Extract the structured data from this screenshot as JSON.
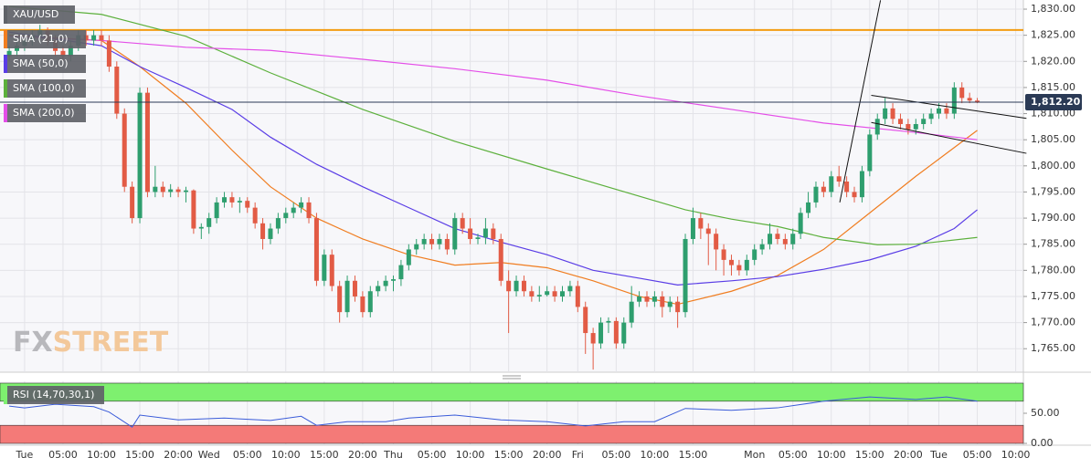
{
  "chart_data": {
    "type": "candlestick",
    "symbol": "XAU/USD",
    "up_color": "#2e9e6e",
    "down_color": "#e25b45",
    "xlim": [
      -3.2,
      130
    ],
    "ylim": [
      1760.5,
      1831.75
    ],
    "grid": true,
    "xticks": [
      {
        "value": 0,
        "label": "Tue"
      },
      {
        "value": 5,
        "label": "05:00"
      },
      {
        "value": 10,
        "label": "10:00"
      },
      {
        "value": 15,
        "label": "15:00"
      },
      {
        "value": 20,
        "label": "20:00"
      },
      {
        "value": 24,
        "label": "Wed"
      },
      {
        "value": 29,
        "label": "05:00"
      },
      {
        "value": 34,
        "label": "10:00"
      },
      {
        "value": 39,
        "label": "15:00"
      },
      {
        "value": 44,
        "label": "20:00"
      },
      {
        "value": 48,
        "label": "Thu"
      },
      {
        "value": 53,
        "label": "05:00"
      },
      {
        "value": 58,
        "label": "10:00"
      },
      {
        "value": 63,
        "label": "15:00"
      },
      {
        "value": 68,
        "label": "20:00"
      },
      {
        "value": 72,
        "label": "Fri"
      },
      {
        "value": 77,
        "label": "05:00"
      },
      {
        "value": 82,
        "label": "10:00"
      },
      {
        "value": 87,
        "label": "15:00"
      },
      {
        "value": 95,
        "label": "Mon"
      },
      {
        "value": 100,
        "label": "05:00"
      },
      {
        "value": 105,
        "label": "10:00"
      },
      {
        "value": 110,
        "label": "15:00"
      },
      {
        "value": 115,
        "label": "20:00"
      },
      {
        "value": 119,
        "label": "Tue"
      },
      {
        "value": 124,
        "label": "05:00"
      },
      {
        "value": 129,
        "label": "10:00"
      }
    ],
    "yticks": [
      {
        "value": 1765,
        "label": "1,765.00"
      },
      {
        "value": 1770,
        "label": "1,770.00"
      },
      {
        "value": 1775,
        "label": "1,775.00"
      },
      {
        "value": 1780,
        "label": "1,780.00"
      },
      {
        "value": 1785,
        "label": "1,785.00"
      },
      {
        "value": 1790,
        "label": "1,790.00"
      },
      {
        "value": 1795,
        "label": "1,795.00"
      },
      {
        "value": 1800,
        "label": "1,800.00"
      },
      {
        "value": 1805,
        "label": "1,805.00"
      },
      {
        "value": 1810,
        "label": "1,810.00"
      },
      {
        "value": 1815,
        "label": "1,815.00"
      },
      {
        "value": 1820,
        "label": "1,820.00"
      },
      {
        "value": 1825,
        "label": "1,825.00"
      },
      {
        "value": 1830,
        "label": "1,830.00"
      }
    ],
    "x": [
      -2,
      -1,
      0,
      1,
      2,
      3,
      4,
      5,
      6,
      7,
      8,
      9,
      10,
      11,
      12,
      13,
      14,
      15,
      16,
      17,
      18,
      19,
      20,
      21,
      22,
      23,
      24,
      25,
      26,
      27,
      28,
      29,
      30,
      31,
      32,
      33,
      34,
      35,
      36,
      37,
      38,
      39,
      40,
      41,
      42,
      43,
      44,
      45,
      46,
      47,
      48,
      49,
      50,
      51,
      52,
      53,
      54,
      55,
      56,
      57,
      58,
      59,
      60,
      61,
      62,
      63,
      64,
      65,
      66,
      67,
      68,
      69,
      70,
      71,
      72,
      73,
      74,
      75,
      76,
      77,
      78,
      79,
      80,
      81,
      82,
      83,
      84,
      85,
      86,
      87,
      88,
      89,
      90,
      91,
      92,
      93,
      94,
      95,
      96,
      97,
      98,
      99,
      100,
      101,
      102,
      103,
      104,
      105,
      106,
      107,
      108,
      109,
      110,
      111,
      112,
      113,
      114,
      115,
      116,
      117,
      118,
      119,
      120,
      121,
      122,
      123,
      124
    ],
    "candles": [
      [
        1821,
        1823,
        1820,
        1822
      ],
      [
        1822,
        1824,
        1821,
        1823
      ],
      [
        1823,
        1825,
        1822,
        1824
      ],
      [
        1824,
        1826,
        1823,
        1825
      ],
      [
        1825,
        1827,
        1824,
        1826
      ],
      [
        1826,
        1826.5,
        1823,
        1824
      ],
      [
        1824,
        1825,
        1821,
        1822
      ],
      [
        1822,
        1823,
        1820,
        1821
      ],
      [
        1821,
        1824,
        1820,
        1823
      ],
      [
        1823,
        1826,
        1822,
        1825
      ],
      [
        1825,
        1826,
        1823,
        1824
      ],
      [
        1824,
        1826,
        1823,
        1825
      ],
      [
        1825,
        1826,
        1823,
        1824
      ],
      [
        1824,
        1825,
        1818,
        1819
      ],
      [
        1819,
        1820,
        1809,
        1810
      ],
      [
        1810,
        1811,
        1795,
        1796
      ],
      [
        1796,
        1797,
        1789,
        1790
      ],
      [
        1790,
        1815,
        1789,
        1814
      ],
      [
        1814,
        1815,
        1794,
        1795
      ],
      [
        1795,
        1800,
        1794,
        1796
      ],
      [
        1796,
        1797,
        1794,
        1795
      ],
      [
        1795,
        1796.5,
        1794,
        1795.5
      ],
      [
        1795.5,
        1796,
        1794,
        1795
      ],
      [
        1795,
        1796,
        1793,
        1795.3
      ],
      [
        1795.3,
        1795.5,
        1787,
        1788
      ],
      [
        1788,
        1789,
        1786,
        1788.3
      ],
      [
        1788.3,
        1791,
        1787,
        1790
      ],
      [
        1790,
        1794,
        1789,
        1793
      ],
      [
        1793,
        1795,
        1792,
        1794
      ],
      [
        1794,
        1795,
        1792,
        1793
      ],
      [
        1793,
        1794,
        1791,
        1793.3
      ],
      [
        1793.3,
        1794,
        1791,
        1792
      ],
      [
        1792,
        1793,
        1788,
        1789
      ],
      [
        1789,
        1790,
        1784,
        1786
      ],
      [
        1786,
        1789,
        1785,
        1788
      ],
      [
        1788,
        1791,
        1787,
        1790
      ],
      [
        1790,
        1792,
        1789,
        1791
      ],
      [
        1791,
        1793,
        1790,
        1792
      ],
      [
        1792,
        1794,
        1791,
        1793
      ],
      [
        1793,
        1794,
        1789,
        1790
      ],
      [
        1790,
        1791,
        1777,
        1778
      ],
      [
        1778,
        1784,
        1777,
        1783
      ],
      [
        1783,
        1784,
        1776,
        1777
      ],
      [
        1777,
        1778,
        1770,
        1772
      ],
      [
        1772,
        1779,
        1771,
        1778
      ],
      [
        1778,
        1779,
        1774,
        1775
      ],
      [
        1775,
        1776,
        1771,
        1772
      ],
      [
        1772,
        1777,
        1771,
        1776
      ],
      [
        1776,
        1778,
        1775,
        1777
      ],
      [
        1777,
        1779,
        1776,
        1778
      ],
      [
        1778,
        1779,
        1776,
        1778.3
      ],
      [
        1778.3,
        1782,
        1777,
        1781
      ],
      [
        1781,
        1785,
        1780,
        1784
      ],
      [
        1784,
        1786,
        1783,
        1785
      ],
      [
        1785,
        1787,
        1784,
        1786
      ],
      [
        1786,
        1787,
        1784,
        1785
      ],
      [
        1785,
        1787,
        1784,
        1786
      ],
      [
        1786,
        1787,
        1783,
        1784
      ],
      [
        1784,
        1791,
        1783,
        1790
      ],
      [
        1790,
        1791,
        1787,
        1788
      ],
      [
        1788,
        1790,
        1785,
        1786
      ],
      [
        1786,
        1787,
        1785,
        1786.3
      ],
      [
        1786.3,
        1790,
        1785,
        1788
      ],
      [
        1788,
        1789,
        1785,
        1786
      ],
      [
        1786,
        1787,
        1777,
        1778
      ],
      [
        1778,
        1780,
        1768,
        1776
      ],
      [
        1776,
        1779,
        1775,
        1778
      ],
      [
        1778,
        1779,
        1775,
        1776
      ],
      [
        1776,
        1777,
        1774,
        1775
      ],
      [
        1775,
        1777,
        1774,
        1775.3
      ],
      [
        1775.3,
        1777,
        1775,
        1776
      ],
      [
        1776,
        1777,
        1774,
        1775
      ],
      [
        1775,
        1777,
        1774,
        1776
      ],
      [
        1776,
        1778,
        1775,
        1777
      ],
      [
        1777,
        1778,
        1772,
        1773
      ],
      [
        1773,
        1774,
        1764,
        1768
      ],
      [
        1768,
        1769,
        1761,
        1766
      ],
      [
        1766,
        1771,
        1765,
        1770
      ],
      [
        1770,
        1771,
        1768,
        1770.3
      ],
      [
        1770.3,
        1771,
        1765,
        1766
      ],
      [
        1766,
        1771,
        1765,
        1770
      ],
      [
        1770,
        1777,
        1769,
        1774
      ],
      [
        1774,
        1776,
        1773,
        1775
      ],
      [
        1775,
        1776,
        1773,
        1774
      ],
      [
        1774,
        1776,
        1773,
        1775
      ],
      [
        1775,
        1776,
        1771,
        1773
      ],
      [
        1773,
        1775,
        1772,
        1774
      ],
      [
        1774,
        1775,
        1769,
        1772
      ],
      [
        1772,
        1787,
        1771,
        1786
      ],
      [
        1786,
        1792,
        1785,
        1790
      ],
      [
        1790,
        1791,
        1786,
        1788
      ],
      [
        1788,
        1789,
        1781,
        1787
      ],
      [
        1787,
        1788,
        1780,
        1784
      ],
      [
        1784,
        1785,
        1779,
        1782
      ],
      [
        1782,
        1783,
        1779,
        1781
      ],
      [
        1781,
        1782,
        1779,
        1780
      ],
      [
        1780,
        1783,
        1779,
        1782
      ],
      [
        1782,
        1785,
        1781,
        1784
      ],
      [
        1784,
        1786,
        1783,
        1785
      ],
      [
        1785,
        1789,
        1784,
        1787
      ],
      [
        1787,
        1788,
        1785,
        1786
      ],
      [
        1786,
        1787,
        1784,
        1785
      ],
      [
        1785,
        1788,
        1784,
        1787
      ],
      [
        1787,
        1792,
        1786,
        1791
      ],
      [
        1791,
        1795,
        1790,
        1793
      ],
      [
        1793,
        1797,
        1792,
        1796
      ],
      [
        1796,
        1797,
        1794,
        1795
      ],
      [
        1795,
        1799,
        1794,
        1798
      ],
      [
        1798,
        1800,
        1796,
        1797
      ],
      [
        1797,
        1798,
        1794,
        1795
      ],
      [
        1795,
        1796,
        1793,
        1794
      ],
      [
        1794,
        1800,
        1793,
        1799
      ],
      [
        1799,
        1807,
        1798,
        1806
      ],
      [
        1806,
        1810,
        1805,
        1809
      ],
      [
        1809,
        1813,
        1808,
        1811
      ],
      [
        1811,
        1812,
        1808,
        1809
      ],
      [
        1809,
        1810,
        1807,
        1808
      ],
      [
        1808,
        1809,
        1806,
        1807
      ],
      [
        1807,
        1809,
        1806,
        1808
      ],
      [
        1808,
        1810,
        1807,
        1809
      ],
      [
        1809,
        1811,
        1808,
        1810
      ],
      [
        1810,
        1812,
        1809,
        1811
      ],
      [
        1811,
        1812,
        1809,
        1810
      ],
      [
        1810,
        1816,
        1809,
        1815
      ],
      [
        1815,
        1816,
        1812,
        1813
      ],
      [
        1813,
        1814,
        1812,
        1812.5
      ],
      [
        1812.5,
        1813,
        1812,
        1812.2
      ]
    ],
    "series": [
      {
        "name": "SMA (21,0)",
        "color": "#f07d20",
        "x": [
          -2,
          10,
          15,
          21,
          27,
          32,
          38,
          44,
          50,
          56,
          62,
          68,
          74,
          80,
          85,
          92,
          98,
          104,
          110,
          116,
          121,
          124
        ],
        "values": [
          1825,
          1824,
          1819,
          1812,
          1803,
          1796,
          1790,
          1786,
          1783,
          1781,
          1781.5,
          1780.5,
          1778,
          1775,
          1773.5,
          1776,
          1779,
          1784,
          1791,
          1798,
          1803.5,
          1806.8
        ]
      },
      {
        "name": "SMA (50,0)",
        "color": "#5a3de6",
        "x": [
          -2,
          10,
          15,
          21,
          27,
          32,
          38,
          44,
          50,
          56,
          62,
          68,
          74,
          80,
          85,
          92,
          98,
          104,
          110,
          116,
          121,
          124
        ],
        "values": [
          1825.6,
          1823,
          1819,
          1815,
          1810.8,
          1805.5,
          1800.3,
          1796,
          1792,
          1788,
          1785.4,
          1783,
          1780,
          1778.5,
          1777.2,
          1778,
          1778.8,
          1780.2,
          1782,
          1784.6,
          1788,
          1791.6
        ]
      },
      {
        "name": "SMA (100,0)",
        "color": "#5cb03c",
        "x": [
          -2,
          10,
          21,
          32,
          44,
          56,
          68,
          80,
          86,
          92,
          98,
          104,
          111,
          116,
          124
        ],
        "values": [
          1830.5,
          1829,
          1824.8,
          1817.8,
          1810.8,
          1804.7,
          1799.4,
          1794.2,
          1791.6,
          1789.8,
          1788.4,
          1786.3,
          1784.9,
          1785,
          1786.3
        ]
      },
      {
        "name": "SMA (200,0)",
        "color": "#e44ee8",
        "x": [
          -2,
          10,
          21,
          32,
          44,
          56,
          68,
          80,
          92,
          104,
          116,
          124
        ],
        "values": [
          1824.8,
          1824,
          1822.7,
          1822.1,
          1820.4,
          1818.6,
          1816.4,
          1813.4,
          1810.8,
          1808.2,
          1806.4,
          1805
        ]
      }
    ],
    "hline": {
      "value": 1826,
      "color": "#f39c12"
    },
    "last_price": {
      "value": 1812.2,
      "label": "1,812.20"
    },
    "trendlines": [
      [
        106.1,
        1793,
        111.4,
        1831.7
      ],
      [
        110.2,
        1813.5,
        130.4,
        1809.1
      ],
      [
        110.2,
        1808.3,
        130.4,
        1802.4
      ]
    ],
    "watermark": [
      "FX",
      "STREET"
    ],
    "rsi": {
      "name": "RSI (14,70,30,1)",
      "color": "#3a5bd9",
      "ylim": [
        0,
        100
      ],
      "overbought": 70,
      "oversold": 30,
      "yticks": [
        {
          "value": 0,
          "label": "0.00"
        },
        {
          "value": 50,
          "label": "50.00"
        }
      ],
      "x": [
        -2,
        0,
        4,
        9,
        11,
        14,
        15,
        20,
        26,
        32,
        36,
        38,
        42,
        47,
        50,
        56,
        62,
        68,
        73,
        78,
        82,
        86,
        92,
        98,
        104,
        110,
        116,
        120,
        124
      ],
      "values": [
        62,
        59,
        65,
        61,
        52,
        27,
        47,
        39,
        42,
        38,
        45,
        30,
        36,
        36,
        42,
        47,
        39,
        36,
        29,
        36,
        36,
        58,
        55,
        59,
        70,
        77,
        73,
        77,
        70
      ]
    }
  }
}
